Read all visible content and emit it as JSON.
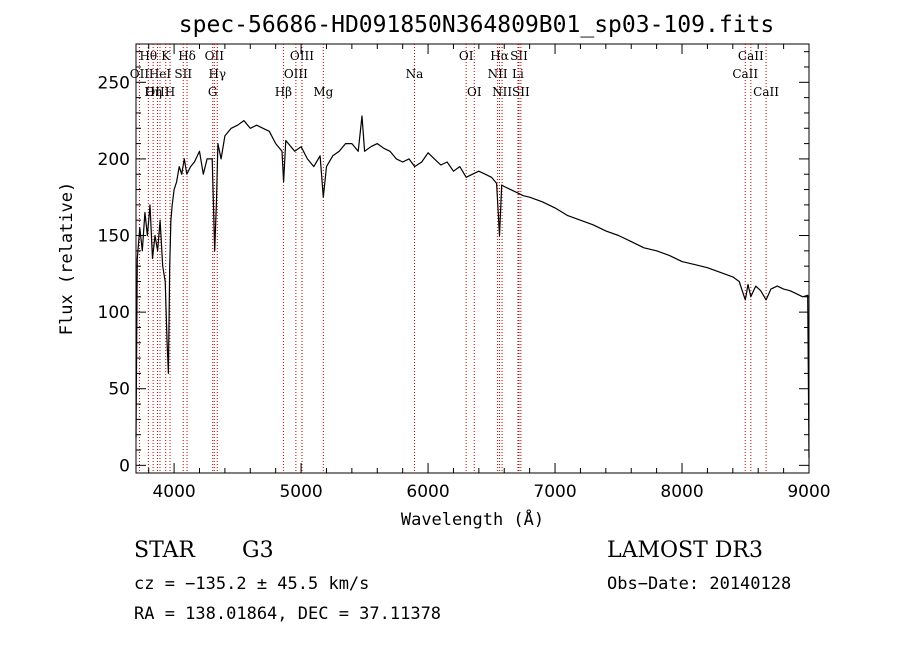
{
  "chart_data": {
    "type": "line",
    "title": "spec-56686-HD091850N364809B01_sp03-109.fits",
    "xlabel": "Wavelength (Å)",
    "ylabel": "Flux (relative)",
    "xlim": [
      3700,
      9000
    ],
    "ylim": [
      -5,
      275
    ],
    "xticks": [
      4000,
      5000,
      6000,
      7000,
      8000,
      9000
    ],
    "yticks": [
      0,
      50,
      100,
      150,
      200,
      250
    ],
    "grid": false,
    "series": [
      {
        "name": "flux",
        "x": [
          3700,
          3710,
          3730,
          3750,
          3770,
          3790,
          3810,
          3830,
          3850,
          3870,
          3890,
          3910,
          3930,
          3945,
          3955,
          3965,
          3975,
          3985,
          4000,
          4020,
          4040,
          4060,
          4080,
          4100,
          4130,
          4160,
          4200,
          4230,
          4260,
          4300,
          4320,
          4335,
          4345,
          4370,
          4400,
          4450,
          4500,
          4550,
          4600,
          4650,
          4700,
          4750,
          4800,
          4850,
          4862,
          4880,
          4900,
          4950,
          5000,
          5050,
          5100,
          5150,
          5175,
          5200,
          5250,
          5300,
          5350,
          5400,
          5450,
          5480,
          5500,
          5550,
          5600,
          5650,
          5700,
          5750,
          5800,
          5850,
          5895,
          5950,
          6000,
          6050,
          6100,
          6150,
          6200,
          6250,
          6300,
          6350,
          6400,
          6450,
          6500,
          6540,
          6563,
          6580,
          6600,
          6650,
          6700,
          6750,
          6800,
          6900,
          7000,
          7100,
          7200,
          7300,
          7400,
          7500,
          7600,
          7700,
          7800,
          7900,
          8000,
          8100,
          8200,
          8300,
          8400,
          8450,
          8498,
          8520,
          8542,
          8580,
          8620,
          8662,
          8700,
          8750,
          8800,
          8850,
          8900,
          8950,
          8990,
          9000
        ],
        "values": [
          18,
          135,
          155,
          140,
          165,
          150,
          170,
          135,
          150,
          140,
          160,
          130,
          120,
          80,
          60,
          130,
          160,
          170,
          180,
          185,
          195,
          190,
          200,
          190,
          195,
          198,
          205,
          190,
          200,
          200,
          140,
          175,
          210,
          200,
          215,
          220,
          222,
          225,
          220,
          222,
          220,
          218,
          210,
          205,
          185,
          212,
          210,
          205,
          208,
          200,
          195,
          202,
          175,
          195,
          202,
          205,
          210,
          210,
          205,
          228,
          205,
          208,
          210,
          207,
          205,
          200,
          198,
          200,
          195,
          198,
          204,
          200,
          196,
          198,
          192,
          195,
          188,
          190,
          192,
          190,
          188,
          184,
          150,
          183,
          182,
          180,
          178,
          176,
          175,
          172,
          168,
          163,
          160,
          157,
          153,
          150,
          146,
          142,
          140,
          137,
          133,
          131,
          129,
          126,
          123,
          120,
          108,
          118,
          110,
          117,
          114,
          108,
          115,
          117,
          115,
          114,
          112,
          110,
          111,
          5
        ]
      }
    ],
    "line_markers": [
      {
        "label": "Hθ",
        "wavelength": 3797,
        "row": 0
      },
      {
        "label": "OII",
        "wavelength": 3727,
        "row": 1
      },
      {
        "label": "OIII",
        "wavelength": 3869,
        "row": 2
      },
      {
        "label": "K",
        "wavelength": 3934,
        "row": 0
      },
      {
        "label": "HeI",
        "wavelength": 3889,
        "row": 1
      },
      {
        "label": "Hη",
        "wavelength": 3835,
        "row": 2
      },
      {
        "label": "Hδ",
        "wavelength": 4102,
        "row": 0
      },
      {
        "label": "SII",
        "wavelength": 4072,
        "row": 1
      },
      {
        "label": "H",
        "wavelength": 3968,
        "row": 2
      },
      {
        "label": "OII",
        "wavelength": 4317,
        "row": 0
      },
      {
        "label": "Hγ",
        "wavelength": 4340,
        "row": 1
      },
      {
        "label": "G",
        "wavelength": 4304,
        "row": 2
      },
      {
        "label": "OIII",
        "wavelength": 5007,
        "row": 0
      },
      {
        "label": "OIII",
        "wavelength": 4959,
        "row": 1
      },
      {
        "label": "Hβ",
        "wavelength": 4861,
        "row": 2
      },
      {
        "label": "Mg",
        "wavelength": 5175,
        "row": 2
      },
      {
        "label": "Na",
        "wavelength": 5893,
        "row": 1
      },
      {
        "label": "OI",
        "wavelength": 6300,
        "row": 0
      },
      {
        "label": "OI",
        "wavelength": 6364,
        "row": 2
      },
      {
        "label": "Hα",
        "wavelength": 6563,
        "row": 0
      },
      {
        "label": "SII",
        "wavelength": 6716,
        "row": 0
      },
      {
        "label": "NII",
        "wavelength": 6548,
        "row": 1
      },
      {
        "label": "Li",
        "wavelength": 6708,
        "row": 1
      },
      {
        "label": "NII",
        "wavelength": 6583,
        "row": 2
      },
      {
        "label": "SII",
        "wavelength": 6731,
        "row": 2
      },
      {
        "label": "CaII",
        "wavelength": 8542,
        "row": 0
      },
      {
        "label": "CaII",
        "wavelength": 8498,
        "row": 1
      },
      {
        "label": "CaII",
        "wavelength": 8662,
        "row": 2
      }
    ]
  },
  "info": {
    "object_type": "STAR",
    "subclass": "G3",
    "survey": "LAMOST DR3",
    "cz": "cz = −135.2 ± 45.5 km/s",
    "obs_date": "Obs−Date: 20140128",
    "radec": "RA = 138.01864, DEC =  37.11378"
  },
  "colors": {
    "line": "#000000",
    "marker": "#c00000",
    "axis": "#000000"
  }
}
